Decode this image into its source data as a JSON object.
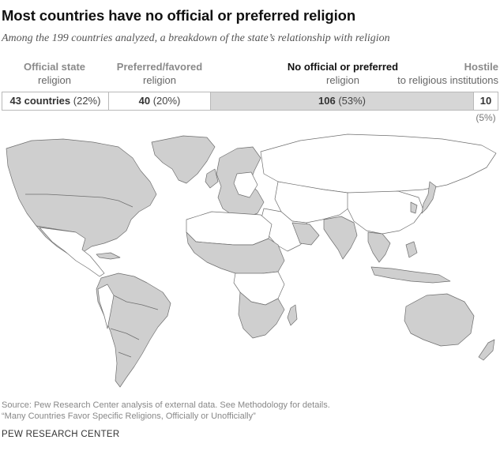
{
  "title": "Most countries have no official or preferred religion",
  "subtitle": "Among the 199 countries analyzed, a breakdown of the state’s relationship with religion",
  "categories": [
    {
      "label": "Official state",
      "sublabel": "religion",
      "count_text": "43 countries",
      "pct_text": "(22%)",
      "count": 43,
      "pct": 22
    },
    {
      "label": "Preferred/favored",
      "sublabel": "religion",
      "count_text": "40",
      "pct_text": "(20%)",
      "count": 40,
      "pct": 20
    },
    {
      "label": "No official or preferred",
      "sublabel": "religion",
      "count_text": "106",
      "pct_text": "(53%)",
      "count": 106,
      "pct": 53
    },
    {
      "label": "Hostile",
      "sublabel": "to religious institutions",
      "count_text": "10",
      "pct_text": "(5%)",
      "count": 10,
      "pct": 5
    }
  ],
  "map": {
    "shaded_meaning": "Official state religion / Preferred/favored religion",
    "colors": {
      "shaded": "#cfcfcf",
      "unshaded": "#ffffff",
      "border": "#6e6e6e",
      "bar_highlight": "#d6d6d6"
    }
  },
  "source": {
    "line1": "Source: Pew Research Center analysis of external data. See Methodology for details.",
    "line2": "“Many Countries Favor Specific Religions, Officially or Unofficially”"
  },
  "organization": "PEW RESEARCH CENTER"
}
